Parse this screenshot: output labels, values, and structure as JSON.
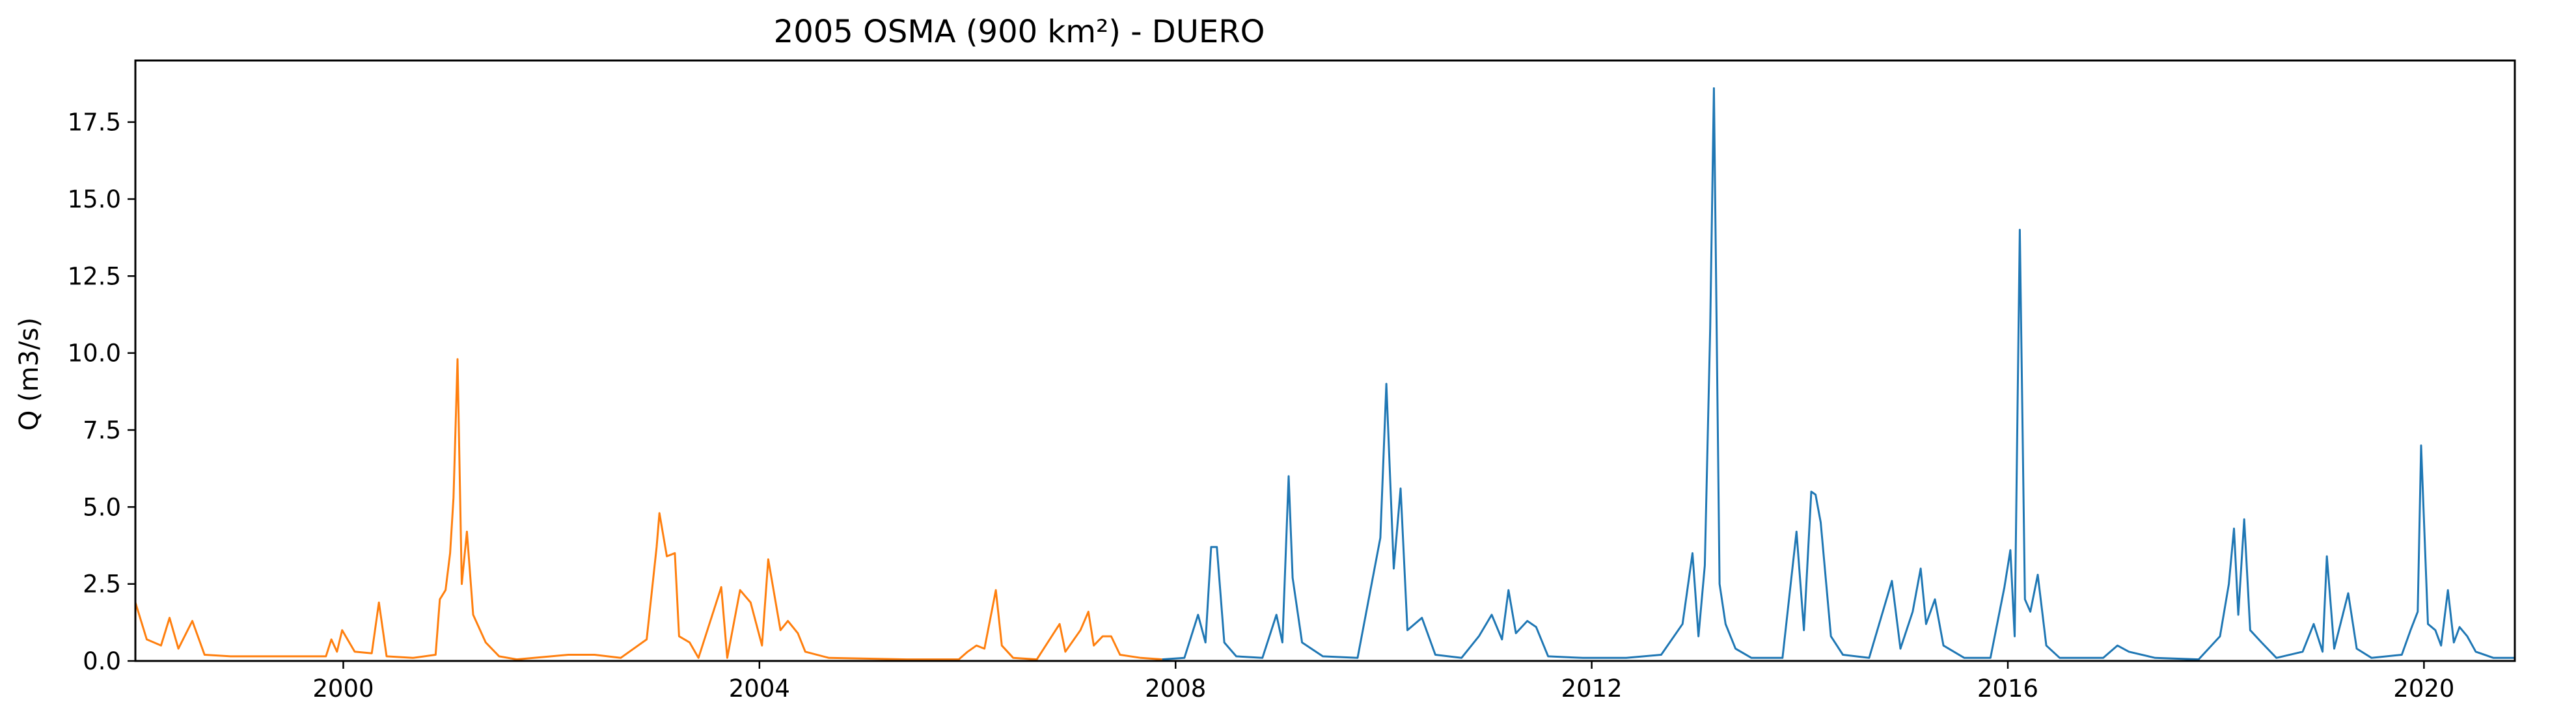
{
  "chart_data": {
    "type": "line",
    "title": "2005 OSMA (900 km²) - DUERO",
    "xlabel": "",
    "ylabel": "Q (m3/s)",
    "xlim": [
      "1998-01-01",
      "2020-11-15"
    ],
    "ylim": [
      0,
      19.5
    ],
    "x_ticks": [
      "2000",
      "2004",
      "2008",
      "2012",
      "2016",
      "2020"
    ],
    "y_ticks": [
      "0.0",
      "2.5",
      "5.0",
      "7.5",
      "10.0",
      "12.5",
      "15.0",
      "17.5"
    ],
    "grid": false,
    "series": [
      {
        "color": "#ff7f0e",
        "points": [
          [
            "1998-01-01",
            1.9
          ],
          [
            "1998-02-10",
            0.7
          ],
          [
            "1998-04-01",
            0.5
          ],
          [
            "1998-05-01",
            1.4
          ],
          [
            "1998-06-01",
            0.4
          ],
          [
            "1998-07-20",
            1.3
          ],
          [
            "1998-09-01",
            0.2
          ],
          [
            "1998-12-01",
            0.15
          ],
          [
            "1999-06-01",
            0.15
          ],
          [
            "1999-11-01",
            0.15
          ],
          [
            "1999-11-20",
            0.7
          ],
          [
            "1999-12-10",
            0.3
          ],
          [
            "1999-12-28",
            1.0
          ],
          [
            "2000-02-10",
            0.3
          ],
          [
            "2000-04-10",
            0.25
          ],
          [
            "2000-05-05",
            1.9
          ],
          [
            "2000-06-01",
            0.15
          ],
          [
            "2000-09-01",
            0.1
          ],
          [
            "2000-11-20",
            0.2
          ],
          [
            "2000-12-05",
            2.0
          ],
          [
            "2000-12-25",
            2.3
          ],
          [
            "2001-01-10",
            3.5
          ],
          [
            "2001-01-22",
            5.3
          ],
          [
            "2001-02-05",
            9.8
          ],
          [
            "2001-02-20",
            2.5
          ],
          [
            "2001-03-10",
            4.2
          ],
          [
            "2001-04-01",
            1.5
          ],
          [
            "2001-05-15",
            0.6
          ],
          [
            "2001-07-01",
            0.15
          ],
          [
            "2001-09-01",
            0.05
          ],
          [
            "2002-03-01",
            0.2
          ],
          [
            "2002-06-01",
            0.2
          ],
          [
            "2002-09-01",
            0.1
          ],
          [
            "2002-12-01",
            0.7
          ],
          [
            "2003-01-05",
            3.7
          ],
          [
            "2003-01-15",
            4.8
          ],
          [
            "2003-02-10",
            3.4
          ],
          [
            "2003-03-10",
            3.5
          ],
          [
            "2003-03-25",
            0.8
          ],
          [
            "2003-05-01",
            0.6
          ],
          [
            "2003-06-01",
            0.1
          ],
          [
            "2003-08-20",
            2.4
          ],
          [
            "2003-09-10",
            0.1
          ],
          [
            "2003-10-25",
            2.3
          ],
          [
            "2003-12-01",
            1.9
          ],
          [
            "2004-01-10",
            0.5
          ],
          [
            "2004-02-01",
            3.3
          ],
          [
            "2004-03-15",
            1.0
          ],
          [
            "2004-04-10",
            1.3
          ],
          [
            "2004-05-15",
            0.9
          ],
          [
            "2004-06-10",
            0.3
          ],
          [
            "2004-09-01",
            0.1
          ],
          [
            "2005-06-01",
            0.05
          ],
          [
            "2005-12-01",
            0.05
          ],
          [
            "2006-01-01",
            0.3
          ],
          [
            "2006-02-01",
            0.5
          ],
          [
            "2006-03-01",
            0.4
          ],
          [
            "2006-04-10",
            2.3
          ],
          [
            "2006-05-01",
            0.5
          ],
          [
            "2006-06-10",
            0.1
          ],
          [
            "2006-09-01",
            0.05
          ],
          [
            "2006-11-20",
            1.2
          ],
          [
            "2006-12-10",
            0.3
          ],
          [
            "2007-02-01",
            1.0
          ],
          [
            "2007-03-01",
            1.6
          ],
          [
            "2007-03-20",
            0.5
          ],
          [
            "2007-04-20",
            0.8
          ],
          [
            "2007-05-20",
            0.8
          ],
          [
            "2007-06-20",
            0.2
          ],
          [
            "2007-09-01",
            0.1
          ],
          [
            "2007-11-15",
            0.05
          ]
        ]
      },
      {
        "color": "#1f77b4",
        "points": [
          [
            "2007-11-15",
            0.05
          ],
          [
            "2008-02-01",
            0.1
          ],
          [
            "2008-03-20",
            1.5
          ],
          [
            "2008-04-15",
            0.6
          ],
          [
            "2008-05-05",
            3.7
          ],
          [
            "2008-05-25",
            3.7
          ],
          [
            "2008-06-20",
            0.6
          ],
          [
            "2008-08-01",
            0.15
          ],
          [
            "2008-11-01",
            0.1
          ],
          [
            "2008-12-20",
            1.5
          ],
          [
            "2009-01-10",
            0.6
          ],
          [
            "2009-02-01",
            6.0
          ],
          [
            "2009-02-15",
            2.7
          ],
          [
            "2009-03-20",
            0.6
          ],
          [
            "2009-06-01",
            0.15
          ],
          [
            "2009-10-01",
            0.1
          ],
          [
            "2009-12-20",
            4.0
          ],
          [
            "2010-01-10",
            9.0
          ],
          [
            "2010-02-05",
            3.0
          ],
          [
            "2010-03-01",
            5.6
          ],
          [
            "2010-03-25",
            1.0
          ],
          [
            "2010-05-15",
            1.4
          ],
          [
            "2010-07-01",
            0.2
          ],
          [
            "2010-10-01",
            0.1
          ],
          [
            "2010-12-01",
            0.8
          ],
          [
            "2011-01-15",
            1.5
          ],
          [
            "2011-02-20",
            0.7
          ],
          [
            "2011-03-15",
            2.3
          ],
          [
            "2011-04-10",
            0.9
          ],
          [
            "2011-05-20",
            1.3
          ],
          [
            "2011-06-20",
            1.1
          ],
          [
            "2011-08-01",
            0.15
          ],
          [
            "2011-12-01",
            0.1
          ],
          [
            "2012-05-01",
            0.1
          ],
          [
            "2012-09-01",
            0.2
          ],
          [
            "2012-11-15",
            1.2
          ],
          [
            "2012-12-20",
            3.5
          ],
          [
            "2013-01-10",
            0.8
          ],
          [
            "2013-02-01",
            3.1
          ],
          [
            "2013-02-20",
            10.8
          ],
          [
            "2013-03-05",
            18.6
          ],
          [
            "2013-03-25",
            2.5
          ],
          [
            "2013-04-15",
            1.2
          ],
          [
            "2013-05-20",
            0.4
          ],
          [
            "2013-07-15",
            0.1
          ],
          [
            "2013-11-01",
            0.1
          ],
          [
            "2013-12-20",
            4.2
          ],
          [
            "2014-01-15",
            1.0
          ],
          [
            "2014-02-10",
            5.5
          ],
          [
            "2014-02-25",
            5.4
          ],
          [
            "2014-03-15",
            4.5
          ],
          [
            "2014-04-20",
            0.8
          ],
          [
            "2014-06-01",
            0.2
          ],
          [
            "2014-09-01",
            0.1
          ],
          [
            "2014-11-20",
            2.6
          ],
          [
            "2014-12-20",
            0.4
          ],
          [
            "2015-02-01",
            1.6
          ],
          [
            "2015-03-01",
            3.0
          ],
          [
            "2015-03-20",
            1.2
          ],
          [
            "2015-04-20",
            2.0
          ],
          [
            "2015-05-20",
            0.5
          ],
          [
            "2015-08-01",
            0.1
          ],
          [
            "2015-11-01",
            0.1
          ],
          [
            "2015-12-20",
            2.4
          ],
          [
            "2016-01-10",
            3.6
          ],
          [
            "2016-01-25",
            0.8
          ],
          [
            "2016-02-12",
            14.0
          ],
          [
            "2016-03-01",
            2.0
          ],
          [
            "2016-03-20",
            1.6
          ],
          [
            "2016-04-15",
            2.8
          ],
          [
            "2016-05-15",
            0.5
          ],
          [
            "2016-07-01",
            0.1
          ],
          [
            "2016-12-01",
            0.1
          ],
          [
            "2017-01-20",
            0.5
          ],
          [
            "2017-03-01",
            0.3
          ],
          [
            "2017-06-01",
            0.1
          ],
          [
            "2017-11-01",
            0.05
          ],
          [
            "2018-01-15",
            0.8
          ],
          [
            "2018-02-15",
            2.5
          ],
          [
            "2018-03-05",
            4.3
          ],
          [
            "2018-03-20",
            1.5
          ],
          [
            "2018-04-10",
            4.6
          ],
          [
            "2018-05-01",
            1.0
          ],
          [
            "2018-06-10",
            0.6
          ],
          [
            "2018-08-01",
            0.1
          ],
          [
            "2018-11-01",
            0.3
          ],
          [
            "2018-12-10",
            1.2
          ],
          [
            "2019-01-10",
            0.3
          ],
          [
            "2019-01-25",
            3.4
          ],
          [
            "2019-02-20",
            0.4
          ],
          [
            "2019-04-10",
            2.2
          ],
          [
            "2019-05-10",
            0.4
          ],
          [
            "2019-07-01",
            0.1
          ],
          [
            "2019-10-15",
            0.2
          ],
          [
            "2019-11-15",
            1.0
          ],
          [
            "2019-12-10",
            1.6
          ],
          [
            "2019-12-22",
            7.0
          ],
          [
            "2020-01-15",
            1.2
          ],
          [
            "2020-02-10",
            1.0
          ],
          [
            "2020-03-01",
            0.5
          ],
          [
            "2020-03-25",
            2.3
          ],
          [
            "2020-04-15",
            0.6
          ],
          [
            "2020-05-05",
            1.1
          ],
          [
            "2020-06-01",
            0.8
          ],
          [
            "2020-07-01",
            0.3
          ],
          [
            "2020-09-01",
            0.1
          ],
          [
            "2020-11-15",
            0.1
          ]
        ]
      }
    ]
  }
}
